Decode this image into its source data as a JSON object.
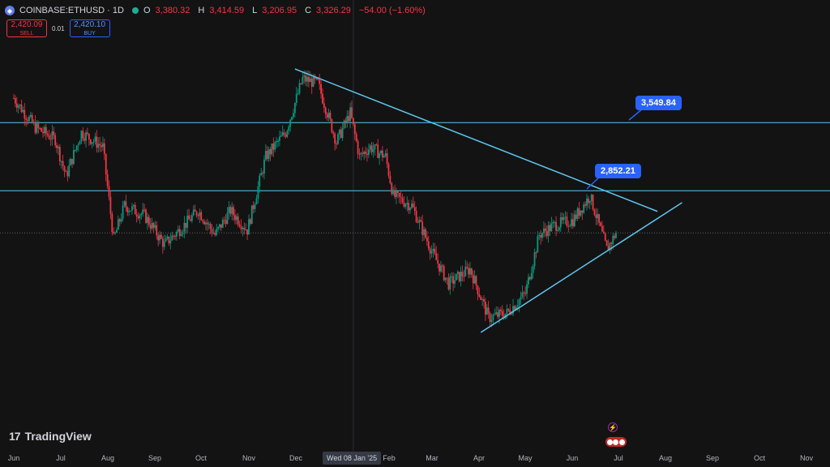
{
  "header": {
    "symbol": "COINBASE:ETHUSD · 1D",
    "open_label": "O",
    "open": "3,380.32",
    "high_label": "H",
    "high": "3,414.59",
    "low_label": "L",
    "low": "3,206.95",
    "close_label": "C",
    "close": "3,326.29",
    "change": "−54.00 (−1.60%)"
  },
  "trade": {
    "sell_price": "2,420.09",
    "sell_label": "SELL",
    "spread": "0.01",
    "buy_price": "2,420.10",
    "buy_label": "BUY"
  },
  "branding": {
    "mark": "17",
    "name": "TradingView"
  },
  "crosshair_label": "Wed 08 Jan '25",
  "icons": [
    "eth-icon",
    "market-open-dot",
    "lightning-event-icon",
    "flags-icon"
  ],
  "colors": {
    "up": "#089981",
    "down": "#f23645",
    "line": "#5fc6f0",
    "accent": "#2962ff",
    "background": "#131313"
  },
  "chart_data": {
    "type": "candlestick",
    "title": "",
    "x_ticks": [
      "Jun",
      "Jul",
      "Aug",
      "Sep",
      "Oct",
      "Nov",
      "Dec",
      "Feb",
      "Mar",
      "Apr",
      "May",
      "Jun",
      "Jul",
      "Aug",
      "Sep",
      "Oct",
      "Nov"
    ],
    "ylim": [
      1400,
      4150
    ],
    "horizontal_levels": [
      3549.84,
      2852.21
    ],
    "callouts": [
      "3,549.84",
      "2,852.21"
    ],
    "trendlines": [
      {
        "name": "",
        "from": [
          "2024-12-01",
          4100
        ],
        "to": [
          "2025-07-25",
          2640
        ]
      },
      {
        "name": "",
        "from": [
          "2025-04-01",
          1400
        ],
        "to": [
          "2025-08-10",
          2730
        ]
      }
    ],
    "series": [
      {
        "name": "",
        "keys": [
          [
            "2024-06-01",
            3800
          ],
          [
            "2024-06-15",
            3500
          ],
          [
            "2024-06-28",
            3380
          ],
          [
            "2024-07-05",
            3000
          ],
          [
            "2024-07-15",
            3450
          ],
          [
            "2024-07-29",
            3300
          ],
          [
            "2024-08-05",
            2350
          ],
          [
            "2024-08-12",
            2700
          ],
          [
            "2024-08-25",
            2600
          ],
          [
            "2024-09-07",
            2300
          ],
          [
            "2024-09-20",
            2500
          ],
          [
            "2024-09-29",
            2650
          ],
          [
            "2024-10-10",
            2400
          ],
          [
            "2024-10-20",
            2650
          ],
          [
            "2024-10-31",
            2450
          ],
          [
            "2024-11-12",
            3200
          ],
          [
            "2024-11-25",
            3450
          ],
          [
            "2024-12-06",
            4000
          ],
          [
            "2024-12-16",
            3950
          ],
          [
            "2024-12-28",
            3350
          ],
          [
            "2025-01-06",
            3650
          ],
          [
            "2025-01-12",
            3200
          ],
          [
            "2025-01-19",
            3300
          ],
          [
            "2025-01-29",
            3200
          ],
          [
            "2025-02-03",
            2800
          ],
          [
            "2025-02-15",
            2700
          ],
          [
            "2025-03-01",
            2200
          ],
          [
            "2025-03-11",
            1900
          ],
          [
            "2025-03-25",
            2050
          ],
          [
            "2025-04-06",
            1550
          ],
          [
            "2025-04-18",
            1600
          ],
          [
            "2025-04-30",
            1800
          ],
          [
            "2025-05-09",
            2400
          ],
          [
            "2025-05-19",
            2500
          ],
          [
            "2025-05-31",
            2550
          ],
          [
            "2025-06-11",
            2800
          ],
          [
            "2025-06-22",
            2250
          ],
          [
            "2025-06-28",
            2420
          ]
        ]
      }
    ]
  }
}
